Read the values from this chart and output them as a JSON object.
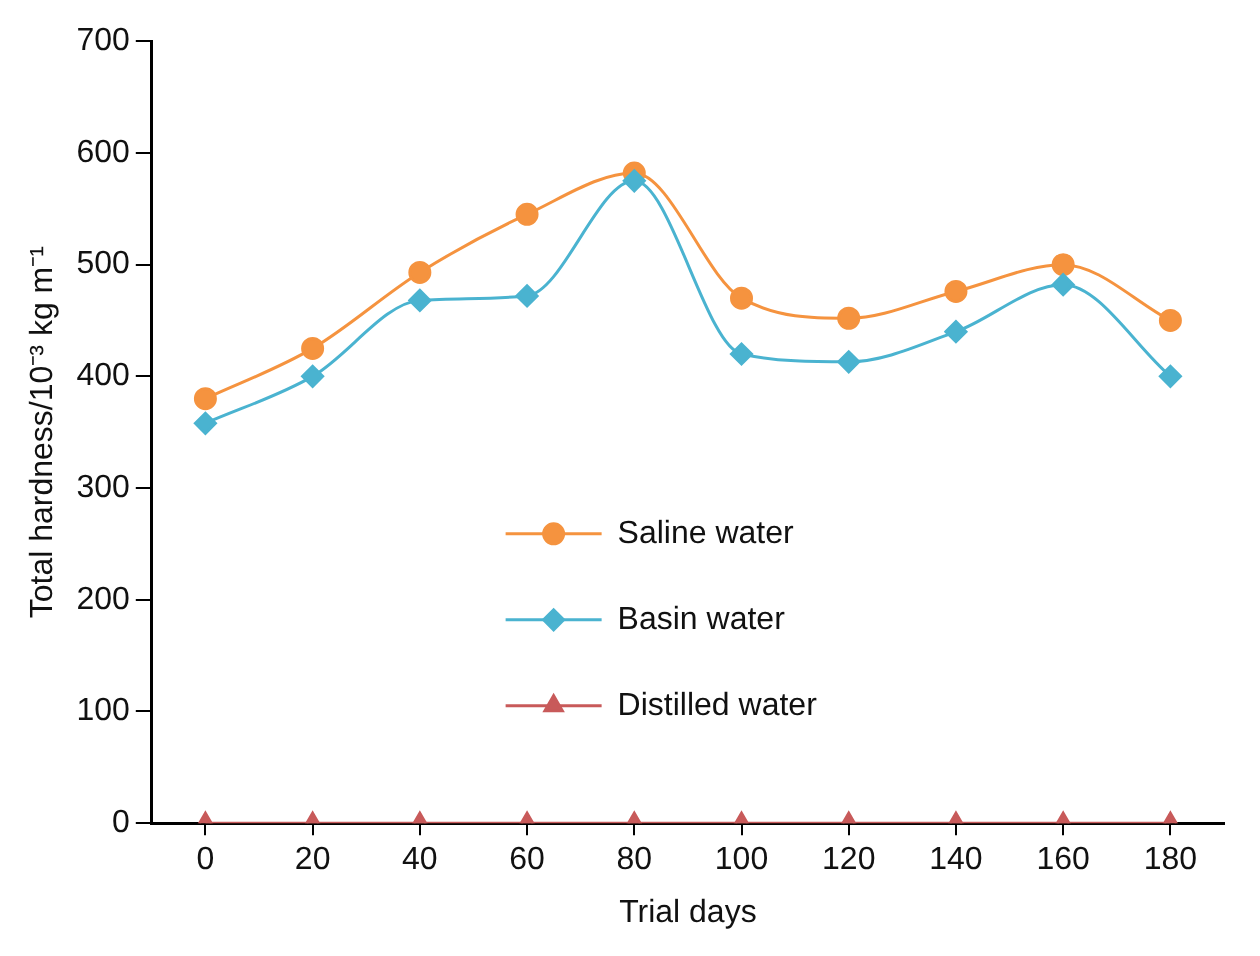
{
  "chart_data": {
    "type": "line",
    "xlabel": "Trial days",
    "ylabel": "Total hardness/10⁻³ kg m⁻¹",
    "categories": [
      "0",
      "20",
      "40",
      "60",
      "80",
      "100",
      "120",
      "140",
      "160",
      "180"
    ],
    "series": [
      {
        "name": "Saline water",
        "color": "#f5933f",
        "marker": "circle",
        "values": [
          380,
          425,
          493,
          545,
          582,
          470,
          452,
          476,
          500,
          450
        ]
      },
      {
        "name": "Basin water",
        "color": "#4ab3d0",
        "marker": "diamond",
        "values": [
          358,
          400,
          468,
          472,
          575,
          420,
          413,
          440,
          482,
          400
        ]
      },
      {
        "name": "Distilled water",
        "color": "#c85a5a",
        "marker": "triangle",
        "values": [
          0,
          0,
          0,
          0,
          0,
          0,
          0,
          0,
          0,
          0
        ]
      }
    ],
    "ylim": [
      0,
      700
    ],
    "yticks": [
      0,
      100,
      200,
      300,
      400,
      500,
      600,
      700
    ],
    "grid": false,
    "legend": "center"
  }
}
